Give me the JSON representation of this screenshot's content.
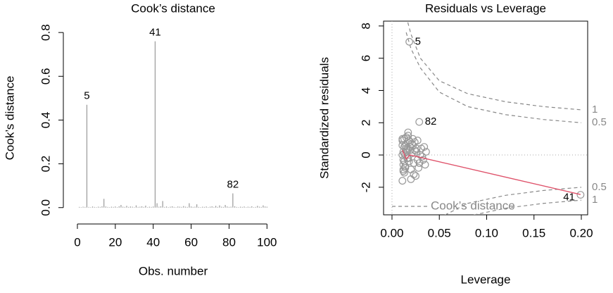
{
  "chart_data": [
    {
      "type": "bar",
      "title": "Cook’s distance",
      "xlabel": "Obs. number",
      "ylabel": "Cook’s distance",
      "color": "#999999",
      "x": [
        1,
        2,
        3,
        4,
        5,
        6,
        7,
        8,
        9,
        10,
        11,
        12,
        13,
        14,
        15,
        16,
        17,
        18,
        19,
        20,
        21,
        22,
        23,
        24,
        25,
        26,
        27,
        28,
        29,
        30,
        31,
        32,
        33,
        34,
        35,
        36,
        37,
        38,
        39,
        40,
        41,
        42,
        43,
        44,
        45,
        46,
        47,
        48,
        49,
        50,
        51,
        52,
        53,
        54,
        55,
        56,
        57,
        58,
        59,
        60,
        61,
        62,
        63,
        64,
        65,
        66,
        67,
        68,
        69,
        70,
        71,
        72,
        73,
        74,
        75,
        76,
        77,
        78,
        79,
        80,
        81,
        82,
        83,
        84,
        85,
        86,
        87,
        88,
        89,
        90,
        91,
        92,
        93,
        94,
        95,
        96,
        97,
        98,
        99,
        100
      ],
      "values": [
        0.003,
        0.002,
        0.004,
        0.003,
        0.47,
        0.003,
        0.002,
        0.005,
        0.003,
        0.002,
        0.004,
        0.003,
        0.006,
        0.04,
        0.005,
        0.003,
        0.002,
        0.004,
        0.003,
        0.005,
        0.002,
        0.006,
        0.012,
        0.004,
        0.003,
        0.008,
        0.003,
        0.005,
        0.004,
        0.002,
        0.01,
        0.003,
        0.004,
        0.006,
        0.003,
        0.009,
        0.002,
        0.004,
        0.003,
        0.005,
        0.76,
        0.02,
        0.004,
        0.006,
        0.03,
        0.003,
        0.005,
        0.002,
        0.004,
        0.006,
        0.003,
        0.002,
        0.005,
        0.004,
        0.003,
        0.007,
        0.004,
        0.003,
        0.02,
        0.005,
        0.003,
        0.004,
        0.015,
        0.003,
        0.002,
        0.004,
        0.003,
        0.005,
        0.002,
        0.004,
        0.006,
        0.003,
        0.008,
        0.003,
        0.01,
        0.004,
        0.003,
        0.012,
        0.005,
        0.003,
        0.004,
        0.065,
        0.006,
        0.003,
        0.002,
        0.004,
        0.003,
        0.005,
        0.002,
        0.004,
        0.003,
        0.006,
        0.002,
        0.003,
        0.008,
        0.004,
        0.003,
        0.01,
        0.005,
        0.004
      ],
      "point_labels": [
        null,
        null,
        null,
        null,
        "5",
        null,
        null,
        null,
        null,
        null,
        null,
        null,
        null,
        null,
        null,
        null,
        null,
        null,
        null,
        null,
        null,
        null,
        null,
        null,
        null,
        null,
        null,
        null,
        null,
        null,
        null,
        null,
        null,
        null,
        null,
        null,
        null,
        null,
        null,
        null,
        "41",
        null,
        null,
        null,
        null,
        null,
        null,
        null,
        null,
        null,
        null,
        null,
        null,
        null,
        null,
        null,
        null,
        null,
        null,
        null,
        null,
        null,
        null,
        null,
        null,
        null,
        null,
        null,
        null,
        null,
        null,
        null,
        null,
        null,
        null,
        null,
        null,
        null,
        null,
        null,
        null,
        "82",
        null,
        null,
        null,
        null,
        null,
        null,
        null,
        null,
        null,
        null,
        null,
        null,
        null,
        null,
        null,
        null,
        null,
        null
      ],
      "xlim": [
        -2.96,
        103.96
      ],
      "xticks": [
        0,
        20,
        40,
        60,
        80,
        100
      ],
      "ylim": [
        -0.033,
        0.852
      ],
      "yticks": [
        {
          "value": 0,
          "label": "0.0"
        },
        0.2,
        0.4,
        0.6,
        0.8
      ]
    },
    {
      "type": "scatter",
      "title": "Residuals vs Leverage",
      "xlabel": "Leverage",
      "ylabel": "Standardized residuals",
      "color": "#999999",
      "x": [
        0.0183,
        0.0288,
        0.1992,
        0.011,
        0.012,
        0.013,
        0.011,
        0.014,
        0.012,
        0.015,
        0.013,
        0.016,
        0.012,
        0.017,
        0.014,
        0.018,
        0.011,
        0.019,
        0.015,
        0.02,
        0.013,
        0.021,
        0.016,
        0.022,
        0.012,
        0.023,
        0.017,
        0.024,
        0.014,
        0.025,
        0.018,
        0.026,
        0.011,
        0.027,
        0.019,
        0.028,
        0.015,
        0.03,
        0.02,
        0.031,
        0.013,
        0.032,
        0.021,
        0.034,
        0.016,
        0.035,
        0.022,
        0.012,
        0.024,
        0.017,
        0.026,
        0.014,
        0.011,
        0.029,
        0.019,
        0.033,
        0.013,
        0.023,
        0.036,
        0.027
      ],
      "y": [
        7.02,
        2.05,
        -2.47,
        0.9,
        -0.3,
        0.5,
        1.0,
        -0.8,
        0.2,
        0.7,
        -1.1,
        0.3,
        -0.6,
        1.2,
        0.0,
        -0.4,
        -1.6,
        0.8,
        0.4,
        -0.9,
        1.0,
        0.1,
        -0.2,
        0.6,
        -1.0,
        -0.5,
        1.4,
        0.3,
        -0.7,
        -1.3,
        0.9,
        0.2,
        0.6,
        -0.3,
        0.5,
        -0.8,
        1.1,
        0.0,
        -1.5,
        0.4,
        -0.4,
        -0.1,
        0.7,
        0.5,
        0.2,
        -0.6,
        1.0,
        -0.9,
        0.8,
        -0.2,
        0.4,
        0.6,
        0.0,
        -0.5,
        0.3,
        -0.3,
        0.1,
        -1.2,
        0.2,
        0.9
      ],
      "point_labels": [
        "5",
        "82",
        "41",
        null,
        null,
        null,
        null,
        null,
        null,
        null,
        null,
        null,
        null,
        null,
        null,
        null,
        null,
        null,
        null,
        null,
        null,
        null,
        null,
        null,
        null,
        null,
        null,
        null,
        null,
        null,
        null,
        null,
        null,
        null,
        null,
        null,
        null,
        null,
        null,
        null,
        null,
        null,
        null,
        null,
        null,
        null,
        null,
        null,
        null,
        null,
        null,
        null,
        null,
        null,
        null,
        null,
        null,
        null,
        null,
        null
      ],
      "smooth": {
        "color": "#df536b",
        "x": [
          0.011,
          0.015,
          0.019,
          0.1992
        ],
        "y": [
          0.3,
          -0.25,
          0.0,
          -2.45
        ]
      },
      "contours": [
        {
          "name": "1",
          "x": [
            0.015,
            0.02,
            0.03,
            0.05,
            0.08,
            0.12,
            0.16,
            0.2
          ],
          "y": [
            8.6,
            7.5,
            6.0,
            4.6,
            3.8,
            3.3,
            3.0,
            2.8
          ]
        },
        {
          "name": "0.5",
          "x": [
            0.015,
            0.02,
            0.03,
            0.05,
            0.08,
            0.12,
            0.16,
            0.2
          ],
          "y": [
            7.6,
            6.6,
            5.4,
            3.9,
            3.0,
            2.5,
            2.2,
            2.0
          ]
        },
        {
          "name": "0.5",
          "x": [
            0.05,
            0.08,
            0.12,
            0.16,
            0.2
          ],
          "y": [
            -3.9,
            -3.0,
            -2.5,
            -2.2,
            -2.0
          ]
        },
        {
          "name": "1",
          "x": [
            0.08,
            0.12,
            0.16,
            0.2
          ],
          "y": [
            -3.8,
            -3.3,
            -3.0,
            -2.8
          ]
        }
      ],
      "contour_color": "#888888",
      "legend": "Cook’s distance",
      "legend_corner": "bottomleft",
      "hline": 0,
      "vline": 0,
      "xlim": [
        -0.0089,
        0.2067
      ],
      "xticks": [
        {
          "value": 0,
          "label": "0.00"
        },
        {
          "value": 0.05,
          "label": "0.05"
        },
        {
          "value": 0.1,
          "label": "0.10"
        },
        {
          "value": 0.15,
          "label": "0.15"
        },
        {
          "value": 0.2,
          "label": "0.20"
        }
      ],
      "ylim": [
        -3.71,
        8.3
      ],
      "yticks": [
        -2,
        0,
        2,
        4,
        6,
        8
      ]
    }
  ]
}
